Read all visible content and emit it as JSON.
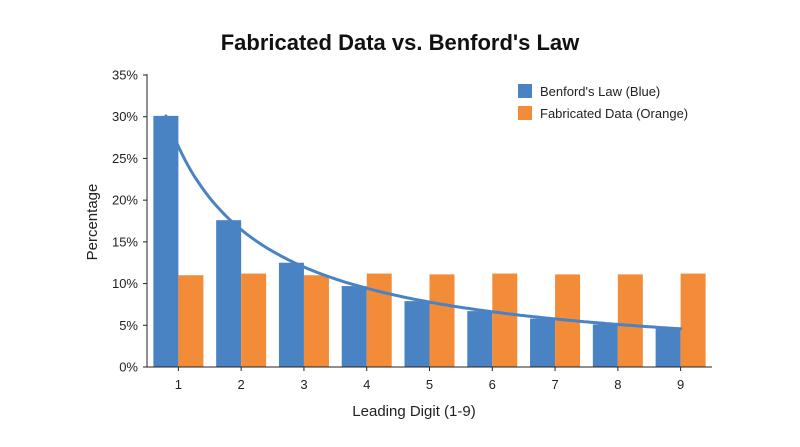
{
  "chart_data": {
    "type": "bar",
    "title": "Fabricated Data vs. Benford's Law",
    "xlabel": "Leading Digit (1-9)",
    "ylabel": "Percentage",
    "categories": [
      "1",
      "2",
      "3",
      "4",
      "5",
      "6",
      "7",
      "8",
      "9"
    ],
    "series": [
      {
        "name": "Benford's Law (Blue)",
        "color": "#4a83c4",
        "values": [
          30.1,
          17.6,
          12.5,
          9.7,
          7.9,
          6.7,
          5.8,
          5.1,
          4.6
        ]
      },
      {
        "name": "Fabricated Data (Orange)",
        "color": "#f28c38",
        "values": [
          11.0,
          11.2,
          11.0,
          11.2,
          11.1,
          11.2,
          11.1,
          11.1,
          11.2
        ]
      }
    ],
    "curve": {
      "color": "#4a83c4",
      "values": [
        30.1,
        17.6,
        12.5,
        9.7,
        7.9,
        6.7,
        5.8,
        5.1,
        4.6
      ]
    },
    "ylim": [
      0,
      35
    ],
    "yticks": [
      "0%",
      "5%",
      "10%",
      "15%",
      "20%",
      "25%",
      "30%",
      "35%"
    ],
    "ytick_values": [
      0,
      5,
      10,
      15,
      20,
      25,
      30,
      35
    ],
    "grid": false,
    "legend_position": "top-right"
  }
}
